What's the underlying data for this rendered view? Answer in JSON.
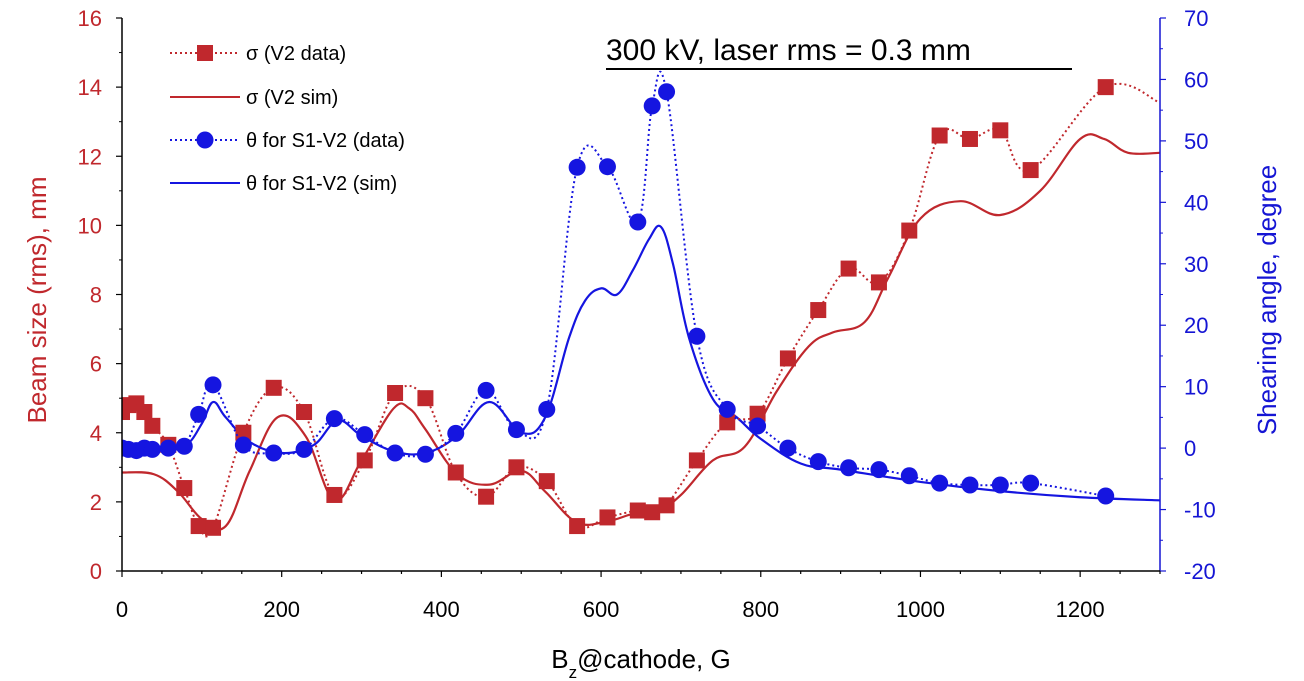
{
  "chart_data": {
    "type": "line",
    "annotation": "300 kV, laser rms = 0.3 mm",
    "xlabel": {
      "main": "B",
      "sub": "z",
      "rest": "@cathode, G"
    },
    "ylabel_left": "Beam size (rms), mm",
    "ylabel_right": "Shearing angle, degree",
    "xlim": [
      0,
      1300
    ],
    "ylim_left": [
      0,
      16
    ],
    "ylim_right": [
      -20,
      70
    ],
    "x_ticks": [
      "0",
      "200",
      "400",
      "600",
      "800",
      "1000",
      "1200"
    ],
    "x_tick_values": [
      0,
      200,
      400,
      600,
      800,
      1000,
      1200
    ],
    "y_left_ticks": [
      "0",
      "2",
      "4",
      "6",
      "8",
      "10",
      "12",
      "14",
      "16"
    ],
    "y_left_tick_values": [
      0,
      2,
      4,
      6,
      8,
      10,
      12,
      14,
      16
    ],
    "y_right_ticks": [
      "-20",
      "-10",
      "0",
      "10",
      "20",
      "30",
      "40",
      "50",
      "60",
      "70"
    ],
    "y_right_tick_values": [
      -20,
      -10,
      0,
      10,
      20,
      30,
      40,
      50,
      60,
      70
    ],
    "grid": false,
    "legend_position": "top-left",
    "colors": {
      "red": "#c0282d",
      "blue": "#1515e0",
      "left_axis": "#c0282d",
      "right_axis": "#1515d4"
    },
    "series": [
      {
        "name": "σ (V2 data)",
        "axis": "left",
        "style": "dotted-line-square-markers",
        "x": [
          0,
          8,
          18,
          28,
          38,
          58,
          78,
          96,
          114,
          152,
          190,
          228,
          266,
          304,
          342,
          380,
          418,
          456,
          494,
          532,
          570,
          608,
          646,
          664,
          682,
          720,
          758,
          796,
          834,
          872,
          910,
          948,
          986,
          1024,
          1062,
          1100,
          1138,
          1232
        ],
        "values": [
          4.6,
          4.8,
          4.85,
          4.6,
          4.2,
          3.65,
          2.4,
          1.3,
          1.25,
          4.0,
          5.3,
          4.6,
          2.2,
          3.2,
          5.15,
          5.0,
          2.85,
          2.15,
          3.0,
          2.6,
          1.3,
          1.55,
          1.75,
          1.7,
          1.9,
          3.2,
          4.3,
          4.55,
          6.15,
          7.55,
          8.75,
          8.35,
          9.85,
          12.6,
          12.5,
          12.75,
          11.6,
          14.0
        ]
      },
      {
        "name": "σ (V2 sim)",
        "axis": "left",
        "style": "solid-line",
        "x": [
          0,
          40,
          70,
          100,
          130,
          160,
          195,
          230,
          266,
          300,
          340,
          360,
          380,
          420,
          460,
          500,
          530,
          570,
          610,
          640,
          670,
          700,
          740,
          780,
          820,
          860,
          890,
          930,
          960,
          1000,
          1050,
          1100,
          1150,
          1200,
          1230,
          1260,
          1300
        ],
        "values": [
          2.85,
          2.8,
          2.3,
          1.5,
          1.3,
          2.9,
          4.45,
          3.9,
          2.05,
          3.2,
          4.7,
          4.7,
          4.1,
          2.8,
          2.5,
          2.9,
          2.3,
          1.4,
          1.45,
          1.65,
          1.7,
          2.2,
          3.2,
          3.6,
          5.2,
          6.5,
          6.9,
          7.2,
          8.5,
          10.2,
          10.7,
          10.3,
          11.0,
          12.5,
          12.5,
          12.1,
          12.1
        ]
      },
      {
        "name": "θ for S1-V2 (data)",
        "axis": "right",
        "style": "dotted-line-circle-markers",
        "x": [
          0,
          8,
          18,
          28,
          38,
          58,
          78,
          96,
          114,
          152,
          190,
          228,
          266,
          304,
          342,
          380,
          418,
          456,
          494,
          532,
          570,
          608,
          646,
          664,
          682,
          720,
          758,
          796,
          834,
          872,
          910,
          948,
          986,
          1024,
          1062,
          1100,
          1138,
          1232
        ],
        "values": [
          0.0,
          -0.2,
          -0.4,
          0.0,
          -0.2,
          0.0,
          0.3,
          5.5,
          10.3,
          0.5,
          -0.8,
          -0.2,
          4.8,
          2.2,
          -0.8,
          -1.0,
          2.4,
          9.4,
          3.0,
          6.3,
          45.7,
          45.8,
          36.8,
          55.7,
          58.0,
          18.2,
          6.3,
          3.6,
          0.0,
          -2.2,
          -3.2,
          -3.5,
          -4.5,
          -5.7,
          -6.0,
          -6.0,
          -5.7,
          -7.8
        ]
      },
      {
        "name": "θ for S1-V2 (sim)",
        "axis": "right",
        "style": "solid-line",
        "x": [
          0,
          50,
          80,
          100,
          114,
          130,
          160,
          200,
          240,
          270,
          300,
          340,
          380,
          420,
          460,
          500,
          530,
          560,
          580,
          600,
          620,
          640,
          660,
          675,
          690,
          710,
          740,
          770,
          800,
          850,
          900,
          1000,
          1100,
          1200,
          1300
        ],
        "values": [
          0.2,
          0.2,
          0.5,
          4.0,
          7.5,
          5.0,
          1.0,
          -0.8,
          0.5,
          4.5,
          2.0,
          -0.5,
          -0.8,
          2.0,
          7.5,
          2.5,
          5.0,
          18.0,
          24.0,
          26.0,
          25.0,
          29.0,
          34.0,
          36.0,
          30.0,
          18.0,
          8.0,
          5.0,
          1.5,
          -2.5,
          -3.5,
          -5.5,
          -7.0,
          -8.0,
          -8.5
        ]
      }
    ]
  }
}
